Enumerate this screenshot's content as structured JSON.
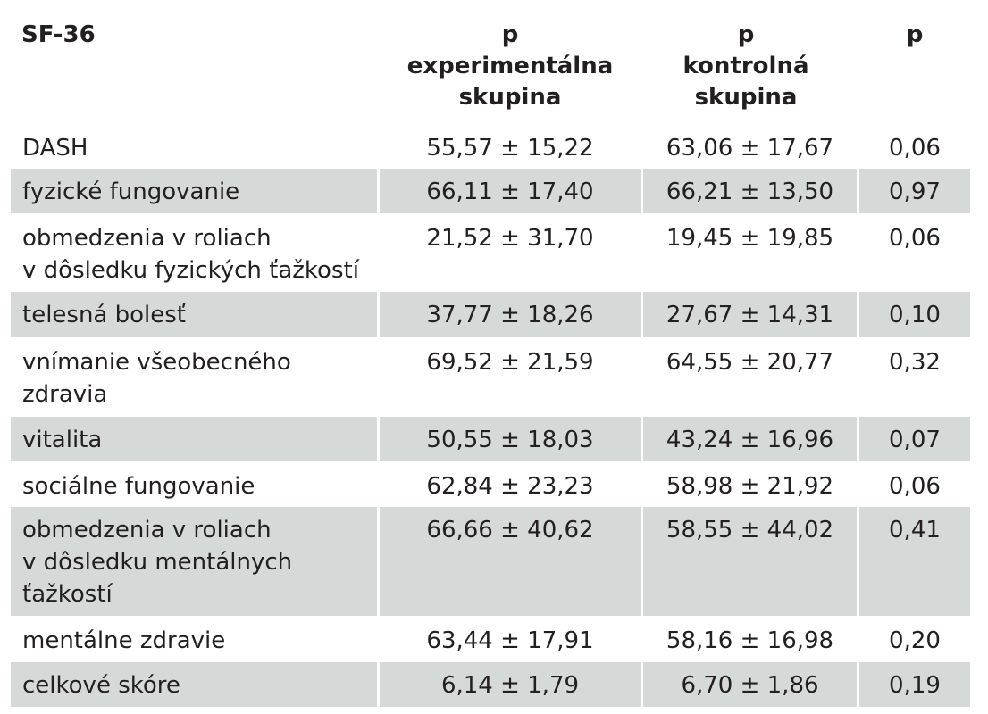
{
  "header": {
    "label": "SF-36",
    "col1": [
      "p",
      "experimentálna",
      "skupina"
    ],
    "col2": [
      "p",
      "kontrolná",
      "skupina"
    ],
    "col3": "p"
  },
  "rows": [
    {
      "label": [
        "DASH"
      ],
      "exp": "55,57 ± 15,22",
      "ctrl": "63,06 ± 17,67",
      "p": "0,06"
    },
    {
      "label": [
        "fyzické fungovanie"
      ],
      "exp": "66,11 ± 17,40",
      "ctrl": "66,21 ± 13,50",
      "p": "0,97"
    },
    {
      "label": [
        "obmedzenia v roliach",
        "v dôsledku fyzických ťažkostí"
      ],
      "exp": "21,52 ± 31,70",
      "ctrl": "19,45 ± 19,85",
      "p": "0,06"
    },
    {
      "label": [
        "telesná bolesť"
      ],
      "exp": "37,77 ± 18,26",
      "ctrl": "27,67 ± 14,31",
      "p": "0,10"
    },
    {
      "label": [
        "vnímanie všeobecného",
        "zdravia"
      ],
      "exp": "69,52 ± 21,59",
      "ctrl": "64,55 ± 20,77",
      "p": "0,32"
    },
    {
      "label": [
        "vitalita"
      ],
      "exp": "50,55 ± 18,03",
      "ctrl": "43,24 ± 16,96",
      "p": "0,07"
    },
    {
      "label": [
        "sociálne fungovanie"
      ],
      "exp": "62,84 ± 23,23",
      "ctrl": "58,98 ± 21,92",
      "p": "0,06"
    },
    {
      "label": [
        "obmedzenia v roliach",
        "v dôsledku mentálnych",
        "ťažkostí"
      ],
      "exp": "66,66 ± 40,62",
      "ctrl": "58,55 ± 44,02",
      "p": "0,41"
    },
    {
      "label": [
        "mentálne zdravie"
      ],
      "exp": "63,44 ± 17,91",
      "ctrl": "58,16 ± 16,98",
      "p": "0,20"
    },
    {
      "label": [
        "celkové skóre"
      ],
      "exp": "6,14 ± 1,79",
      "ctrl": "6,70 ± 1,86",
      "p": "0,19"
    }
  ]
}
